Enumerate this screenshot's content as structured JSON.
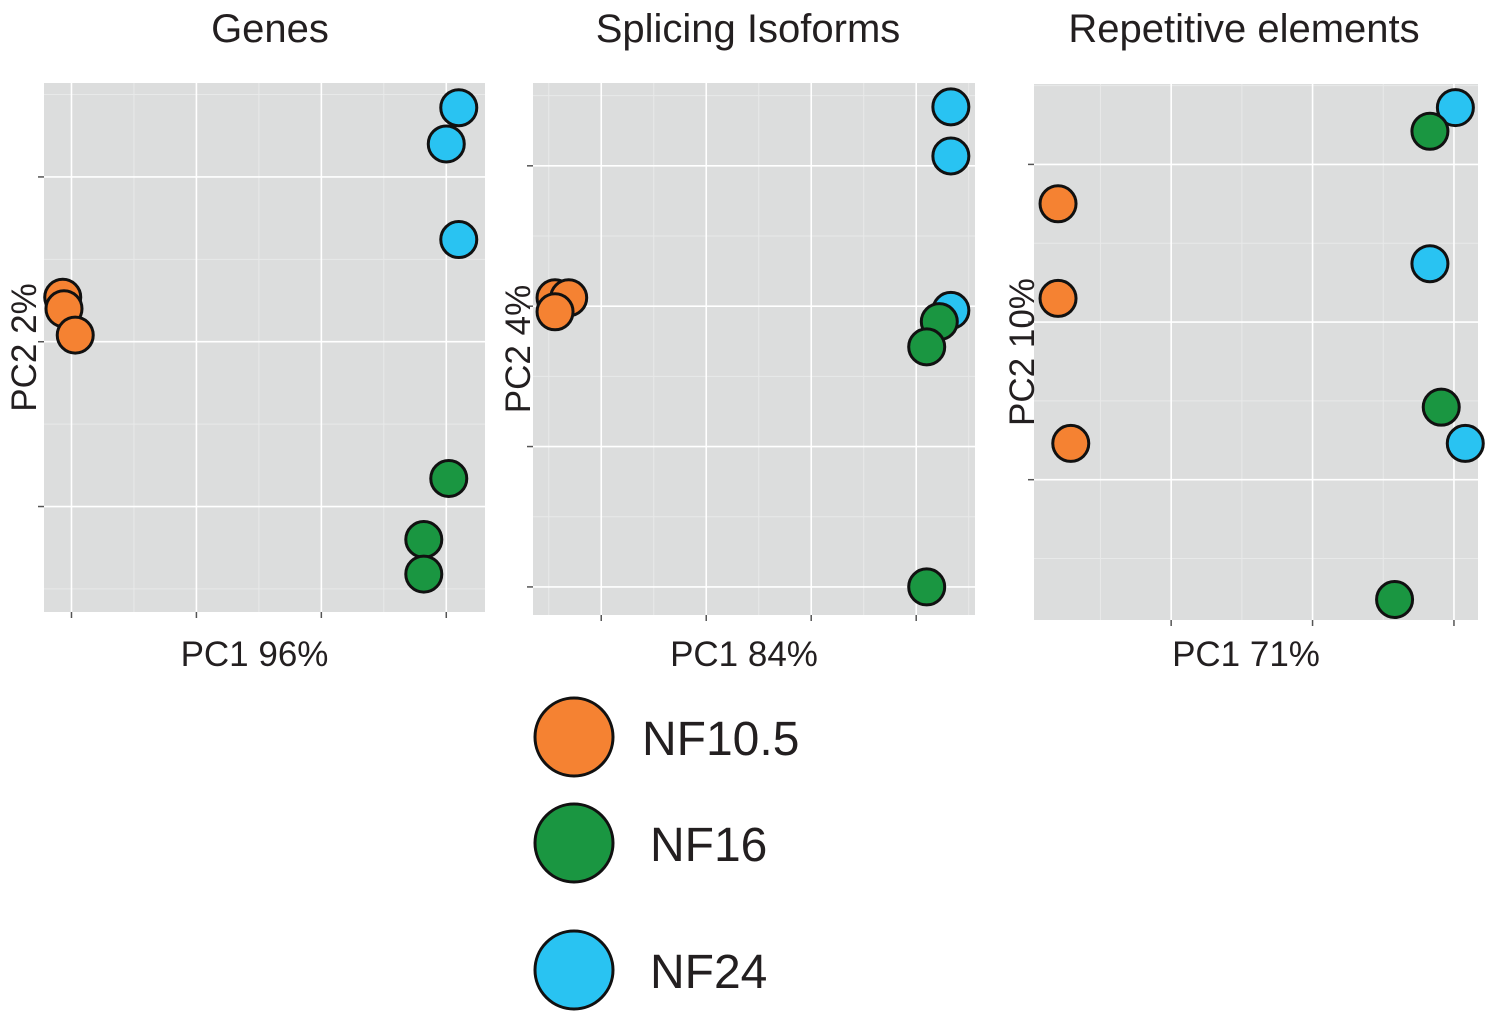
{
  "colors": {
    "panel_bg": "#dcdddd",
    "grid": "#ffffff",
    "NF10.5": "#f58232",
    "NF16": "#1a9641",
    "NF24": "#29c3f2"
  },
  "legend": {
    "placement": "bottom-center",
    "entries": [
      {
        "label": "NF10.5",
        "color": "#f58232"
      },
      {
        "label": "NF16",
        "color": "#1a9641"
      },
      {
        "label": "NF24",
        "color": "#29c3f2"
      }
    ]
  },
  "chart_data": [
    {
      "type": "scatter",
      "title": "Genes",
      "xlabel": "PC1 96%",
      "ylabel": "PC2 2%",
      "grid": true,
      "xticks": [
        0,
        1,
        2,
        3
      ],
      "yticks": [
        0,
        1,
        2
      ],
      "xlim": [
        -0.22,
        3.31
      ],
      "ylim": [
        -0.64,
        2.57
      ],
      "series": [
        {
          "name": "NF10.5",
          "points": [
            [
              -0.07,
              1.27
            ],
            [
              -0.06,
              1.2
            ],
            [
              0.03,
              1.04
            ]
          ]
        },
        {
          "name": "NF16",
          "points": [
            [
              3.02,
              0.17
            ],
            [
              2.82,
              -0.2
            ],
            [
              2.82,
              -0.41
            ]
          ]
        },
        {
          "name": "NF24",
          "points": [
            [
              3.1,
              2.42
            ],
            [
              3.0,
              2.2
            ],
            [
              3.1,
              1.62
            ]
          ]
        }
      ]
    },
    {
      "type": "scatter",
      "title": "Splicing Isoforms",
      "xlabel": "PC1 84%",
      "ylabel": "PC2 4%",
      "grid": true,
      "xticks": [
        0,
        1,
        2,
        3
      ],
      "yticks": [
        0,
        1,
        2,
        3
      ],
      "xlim": [
        -0.65,
        3.56
      ],
      "ylim": [
        -0.2,
        3.59
      ],
      "series": [
        {
          "name": "NF10.5",
          "points": [
            [
              -0.44,
              2.06
            ],
            [
              -0.31,
              2.06
            ],
            [
              -0.44,
              1.96
            ]
          ]
        },
        {
          "name": "NF24",
          "points": [
            [
              3.33,
              3.42
            ],
            [
              3.33,
              3.07
            ],
            [
              3.33,
              1.97
            ]
          ]
        },
        {
          "name": "NF16",
          "points": [
            [
              3.22,
              1.89
            ],
            [
              3.1,
              1.71
            ],
            [
              3.1,
              0.0
            ]
          ]
        }
      ]
    },
    {
      "type": "scatter",
      "title": "Repetitive elements",
      "xlabel": "PC1 71%",
      "ylabel": "PC2 10%",
      "grid": true,
      "xticks": [
        0,
        1,
        2
      ],
      "yticks": [
        0,
        1,
        2
      ],
      "xlim": [
        -0.97,
        2.17
      ],
      "ylim": [
        -0.89,
        2.51
      ],
      "series": [
        {
          "name": "NF10.5",
          "points": [
            [
              -0.8,
              1.75
            ],
            [
              -0.8,
              1.15
            ],
            [
              -0.71,
              0.23
            ]
          ]
        },
        {
          "name": "NF24",
          "points": [
            [
              2.01,
              2.36
            ],
            [
              1.83,
              1.37
            ],
            [
              2.08,
              0.23
            ]
          ]
        },
        {
          "name": "NF16",
          "points": [
            [
              1.83,
              2.21
            ],
            [
              1.91,
              0.46
            ],
            [
              1.58,
              -0.76
            ]
          ]
        }
      ]
    }
  ]
}
